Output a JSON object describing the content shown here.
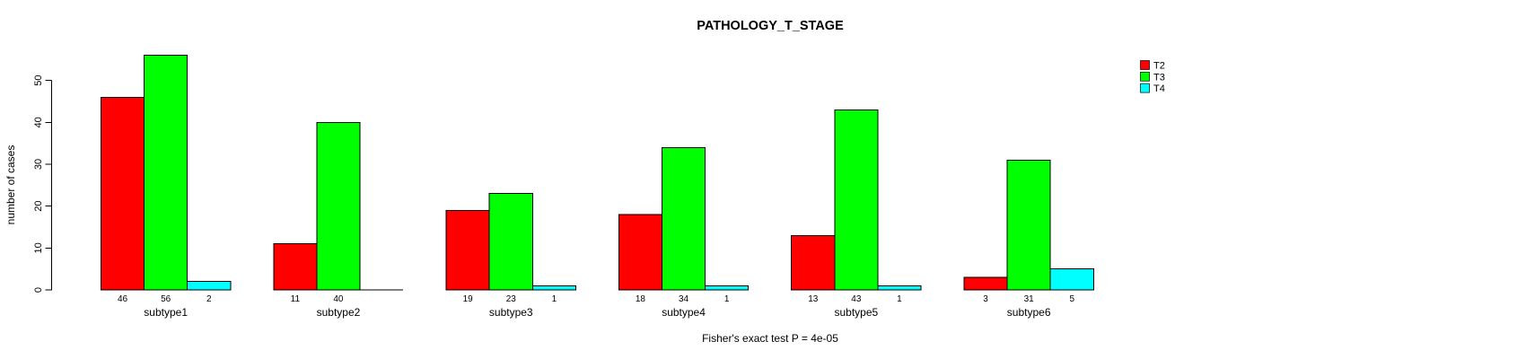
{
  "chart_data": {
    "type": "bar",
    "title": "PATHOLOGY_T_STAGE",
    "xlabel": "",
    "ylabel": "number of cases",
    "caption": "Fisher's exact test P = 4e-05",
    "categories": [
      "subtype1",
      "subtype2",
      "subtype3",
      "subtype4",
      "subtype5",
      "subtype6"
    ],
    "series": [
      {
        "name": "T2",
        "color": "#FF0000",
        "values": [
          46,
          11,
          19,
          18,
          13,
          3
        ]
      },
      {
        "name": "T3",
        "color": "#00FF00",
        "values": [
          56,
          40,
          23,
          34,
          43,
          31
        ]
      },
      {
        "name": "T4",
        "color": "#00FFFF",
        "values": [
          2,
          0,
          1,
          1,
          1,
          5
        ]
      }
    ],
    "yticks": [
      0,
      10,
      20,
      30,
      40,
      50
    ],
    "ylim": [
      0,
      58
    ],
    "grid": false,
    "bar_value_labels": true,
    "hide_zero_value_labels": true,
    "legend": {
      "position": "top-right",
      "entries": [
        "T2",
        "T3",
        "T4"
      ]
    },
    "bar_border_color": "#000000",
    "axis_color": "#000000",
    "background": "#FFFFFF"
  }
}
